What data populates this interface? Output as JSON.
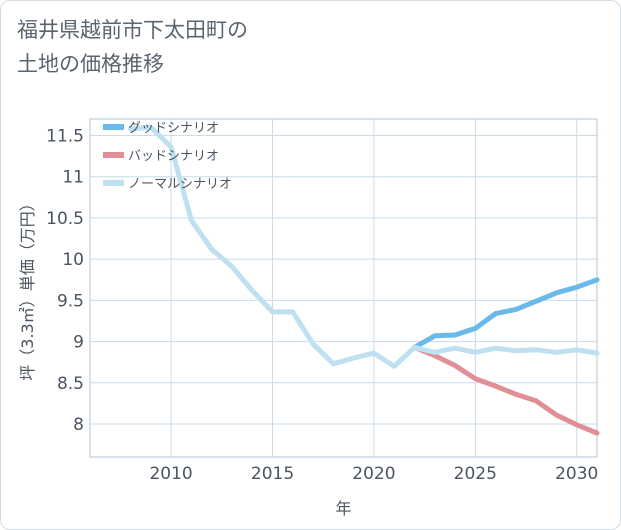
{
  "title": "福井県越前市下太田町の\n土地の価格推移",
  "colors": {
    "good": "#6ab9ea",
    "bad": "#e08f96",
    "normal": "#bfe0f0",
    "grid": "#c8dce9",
    "frame": "#b3c6d4"
  },
  "chart_data": {
    "type": "line",
    "title": "福井県越前市下太田町の土地の価格推移",
    "xlabel": "年",
    "ylabel": "坪（3.3㎡）単価（万円）",
    "xlim": [
      2006,
      2031
    ],
    "ylim": [
      7.6,
      11.7
    ],
    "x_ticks": [
      2010,
      2015,
      2020,
      2025,
      2030
    ],
    "y_ticks": [
      8,
      8.5,
      9,
      9.5,
      10,
      10.5,
      11,
      11.5
    ],
    "y_tick_labels": [
      "8",
      "8.5",
      "9",
      "9.5",
      "10",
      "10.5",
      "11",
      "11.5"
    ],
    "grid": true,
    "legend_position": "top-left",
    "series": [
      {
        "name": "グッドシナリオ",
        "color": "#6ab9ea",
        "x": [
          2022,
          2023,
          2024,
          2025,
          2026,
          2027,
          2028,
          2029,
          2030,
          2031
        ],
        "y": [
          8.93,
          9.07,
          9.08,
          9.16,
          9.34,
          9.39,
          9.49,
          9.59,
          9.66,
          9.75
        ]
      },
      {
        "name": "バッドシナリオ",
        "color": "#e08f96",
        "x": [
          2022,
          2023,
          2024,
          2025,
          2026,
          2027,
          2028,
          2029,
          2030,
          2031
        ],
        "y": [
          8.93,
          8.83,
          8.71,
          8.55,
          8.46,
          8.36,
          8.28,
          8.11,
          7.99,
          7.89
        ]
      },
      {
        "name": "ノーマルシナリオ",
        "color": "#bfe0f0",
        "x": [
          2008,
          2009,
          2010,
          2011,
          2012,
          2013,
          2014,
          2015,
          2016,
          2017,
          2018,
          2019,
          2020,
          2021,
          2022,
          2023,
          2024,
          2025,
          2026,
          2027,
          2028,
          2029,
          2030,
          2031
        ],
        "y": [
          11.58,
          11.6,
          11.36,
          10.47,
          10.12,
          9.91,
          9.62,
          9.36,
          9.36,
          8.97,
          8.73,
          8.8,
          8.86,
          8.7,
          8.93,
          8.87,
          8.92,
          8.87,
          8.92,
          8.89,
          8.9,
          8.87,
          8.9,
          8.86
        ]
      }
    ]
  }
}
